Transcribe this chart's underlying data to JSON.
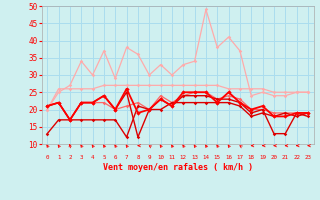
{
  "xlabel": "Vent moyen/en rafales ( km/h )",
  "background_color": "#cff0f0",
  "grid_color": "#aaddee",
  "x_ticks": [
    0,
    1,
    2,
    3,
    4,
    5,
    6,
    7,
    8,
    9,
    10,
    11,
    12,
    13,
    14,
    15,
    16,
    17,
    18,
    19,
    20,
    21,
    22,
    23
  ],
  "ylim": [
    10,
    50
  ],
  "yticks": [
    10,
    15,
    20,
    25,
    30,
    35,
    40,
    45,
    50
  ],
  "series": [
    {
      "color": "#ffaaaa",
      "lw": 0.9,
      "marker": "D",
      "ms": 1.8,
      "data": [
        20,
        26,
        26,
        26,
        26,
        27,
        27,
        27,
        27,
        27,
        27,
        27,
        27,
        27,
        27,
        27,
        26,
        26,
        26,
        26,
        25,
        25,
        25,
        25
      ]
    },
    {
      "color": "#ffaaaa",
      "lw": 0.9,
      "marker": "D",
      "ms": 1.8,
      "data": [
        20,
        25,
        27,
        34,
        30,
        37,
        29,
        38,
        36,
        30,
        33,
        30,
        33,
        34,
        49,
        38,
        41,
        37,
        24,
        25,
        24,
        24,
        25,
        25
      ]
    },
    {
      "color": "#ff6666",
      "lw": 0.9,
      "marker": "D",
      "ms": 1.8,
      "data": [
        21,
        22,
        17,
        22,
        22,
        22,
        20,
        21,
        22,
        20,
        24,
        22,
        24,
        25,
        25,
        23,
        24,
        23,
        20,
        20,
        19,
        19,
        19,
        19
      ]
    },
    {
      "color": "#dd0000",
      "lw": 1.0,
      "marker": "D",
      "ms": 1.8,
      "data": [
        13,
        17,
        17,
        17,
        17,
        17,
        17,
        12,
        21,
        20,
        20,
        22,
        22,
        22,
        22,
        22,
        22,
        21,
        18,
        19,
        18,
        19,
        18,
        19
      ]
    },
    {
      "color": "#dd0000",
      "lw": 1.0,
      "marker": "D",
      "ms": 1.8,
      "data": [
        21,
        22,
        17,
        22,
        22,
        24,
        20,
        25,
        12,
        20,
        23,
        21,
        24,
        24,
        24,
        23,
        23,
        22,
        19,
        20,
        13,
        13,
        19,
        18
      ]
    },
    {
      "color": "#ff0000",
      "lw": 1.3,
      "marker": "D",
      "ms": 2.2,
      "data": [
        21,
        22,
        17,
        22,
        22,
        24,
        20,
        26,
        19,
        20,
        23,
        21,
        25,
        25,
        25,
        22,
        25,
        22,
        20,
        21,
        18,
        18,
        19,
        19
      ]
    }
  ],
  "wind_dirs": [
    225,
    225,
    202,
    225,
    225,
    225,
    225,
    225,
    270,
    247,
    225,
    225,
    225,
    225,
    225,
    225,
    225,
    247,
    270,
    270,
    270,
    270,
    270,
    270
  ]
}
